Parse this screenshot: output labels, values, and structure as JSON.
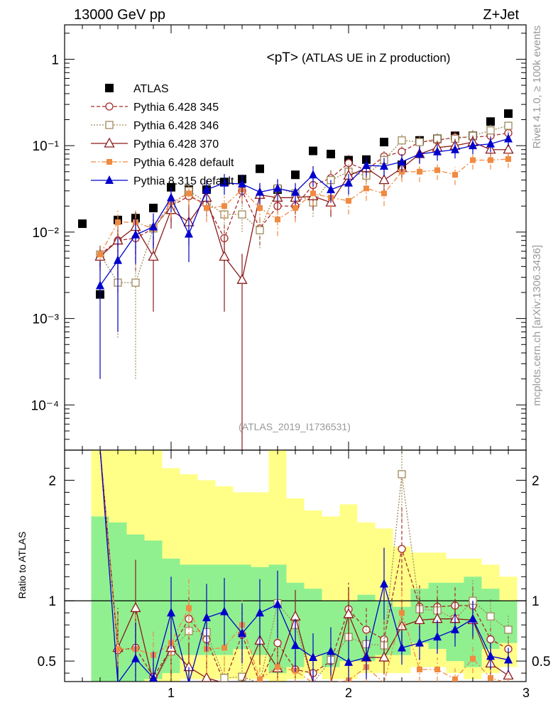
{
  "header": {
    "left": "13000 GeV pp",
    "right": "Z+Jet"
  },
  "side_text": {
    "rivet": "Rivet 4.1.0, ≥ 100k events",
    "mcplots": "mcplots.cern.ch [arXiv:1306.3436]"
  },
  "chart_data": {
    "type": "scatter",
    "title": "<pT> (ATLAS UE in Z production)",
    "title_main": "<pT>",
    "title_sub": " (ATLAS UE in Z production)",
    "analysis_label": "(ATLAS_2019_I1736531)",
    "xlabel": "",
    "ylabel": "",
    "ratio_ylabel": "Ratio to ATLAS",
    "xlim": [
      0.4,
      3.0
    ],
    "ylim": [
      3e-05,
      2.5
    ],
    "yscale": "log",
    "ratio_ylim": [
      0.33,
      2.25
    ],
    "x_ticks": [
      1,
      2,
      3
    ],
    "x_tick_labels": [
      "1",
      "2",
      "3"
    ],
    "y_ticks": [
      0.0001,
      0.001,
      0.01,
      0.1,
      1
    ],
    "y_tick_labels": [
      "10⁻⁴",
      "10⁻³",
      "10⁻²",
      "10⁻¹",
      "1"
    ],
    "ratio_ticks": [
      0.5,
      1,
      2
    ],
    "ratio_tick_labels": [
      "0.5",
      "1",
      "2"
    ],
    "x": [
      0.5,
      0.6,
      0.7,
      0.8,
      0.9,
      1.0,
      1.1,
      1.2,
      1.3,
      1.4,
      1.5,
      1.6,
      1.7,
      1.8,
      1.9,
      2.0,
      2.1,
      2.2,
      2.3,
      2.4,
      2.5,
      2.6,
      2.7,
      2.8,
      2.9
    ],
    "band_bins": [
      0.45,
      0.55,
      0.65,
      0.75,
      0.85,
      0.95,
      1.05,
      1.15,
      1.25,
      1.35,
      1.45,
      1.55,
      1.65,
      1.75,
      1.85,
      1.95,
      2.05,
      2.15,
      2.25,
      2.35,
      2.45,
      2.55,
      2.65,
      2.75,
      2.85,
      2.95
    ],
    "band_stat": [
      [
        0.0,
        0.0
      ],
      [
        0.0,
        1.7
      ],
      [
        0.0,
        1.65
      ],
      [
        0.0,
        1.55
      ],
      [
        0.35,
        1.5
      ],
      [
        0.4,
        1.35
      ],
      [
        0.55,
        1.3
      ],
      [
        0.55,
        1.3
      ],
      [
        0.55,
        1.3
      ],
      [
        0.6,
        1.3
      ],
      [
        0.55,
        1.28
      ],
      [
        0.4,
        1.3
      ],
      [
        0.45,
        1.15
      ],
      [
        0.55,
        1.1
      ],
      [
        0.45,
        1.0
      ],
      [
        0.5,
        1.0
      ],
      [
        0.5,
        1.05
      ],
      [
        0.55,
        1.0
      ],
      [
        0.55,
        0.95
      ],
      [
        0.65,
        1.1
      ],
      [
        0.6,
        1.15
      ],
      [
        0.5,
        1.15
      ],
      [
        0.45,
        1.2
      ],
      [
        0.6,
        1.1
      ],
      [
        0.65,
        1.0
      ],
      [
        0.6,
        1.1
      ]
    ],
    "band_total": [
      [
        0.0,
        0.0
      ],
      [
        0.0,
        2.25
      ],
      [
        0.0,
        2.25
      ],
      [
        0.0,
        2.25
      ],
      [
        0.0,
        2.25
      ],
      [
        0.0,
        2.1
      ],
      [
        0.35,
        2.05
      ],
      [
        0.35,
        2.0
      ],
      [
        0.35,
        1.95
      ],
      [
        0.35,
        1.9
      ],
      [
        0.35,
        1.9
      ],
      [
        0.33,
        2.25
      ],
      [
        0.35,
        1.85
      ],
      [
        0.4,
        1.75
      ],
      [
        0.35,
        1.7
      ],
      [
        0.35,
        1.8
      ],
      [
        0.4,
        1.65
      ],
      [
        0.4,
        1.6
      ],
      [
        0.4,
        1.45
      ],
      [
        0.45,
        1.4
      ],
      [
        0.45,
        1.4
      ],
      [
        0.4,
        1.35
      ],
      [
        0.35,
        1.35
      ],
      [
        0.4,
        1.3
      ],
      [
        0.45,
        1.2
      ],
      [
        0.45,
        1.15
      ]
    ],
    "series": [
      {
        "name": "ATLAS",
        "color": "#000000",
        "marker": "square-filled",
        "line": "none",
        "y": [
          0.0125,
          0.0019,
          0.0138,
          0.0145,
          0.019,
          0.033,
          0.031,
          0.031,
          0.038,
          0.041,
          0.054,
          0.031,
          0.046,
          0.087,
          0.08,
          0.068,
          0.069,
          0.11,
          0.06,
          0.115,
          0.12,
          0.13,
          0.13,
          0.19,
          0.235
        ],
        "ratio": []
      },
      {
        "name": "Pythia 6.428 345",
        "color": "#a52a2a",
        "marker": "circle-open",
        "line": "dashed",
        "y": [
          null,
          0.0055,
          0.008,
          0.0085,
          0.011,
          0.02,
          0.026,
          0.021,
          0.0085,
          0.03,
          0.011,
          0.02,
          0.02,
          0.035,
          0.042,
          0.063,
          0.052,
          0.075,
          0.085,
          0.11,
          0.115,
          0.125,
          0.125,
          0.13,
          0.14
        ],
        "yerr": [
          0,
          0.0015,
          0.006,
          0.005,
          0.004,
          0.007,
          0.007,
          0.006,
          0.004,
          0.009,
          0.004,
          0.006,
          0.006,
          0.01,
          0.012,
          0.015,
          0.014,
          0.017,
          0.019,
          0.02,
          0.021,
          0.022,
          0.022,
          0.022,
          0.023
        ],
        "ratio": [
          null,
          3.0,
          0.59,
          0.61,
          0.37,
          0.6,
          0.85,
          0.68,
          0.22,
          0.72,
          0.2,
          0.65,
          0.43,
          0.4,
          0.5,
          0.93,
          0.76,
          0.68,
          1.43,
          0.95,
          0.95,
          0.96,
          0.96,
          0.68,
          0.6
        ],
        "ratio_err": [
          0,
          0,
          0.35,
          0.35,
          0.2,
          0.22,
          0.22,
          0.2,
          0.1,
          0.22,
          0.1,
          0.2,
          0.15,
          0.12,
          0.15,
          0.22,
          0.18,
          0.16,
          0.35,
          0.18,
          0.17,
          0.16,
          0.16,
          0.12,
          0.1
        ]
      },
      {
        "name": "Pythia 6.428 346",
        "color": "#a08a5a",
        "marker": "square-open",
        "line": "dotted",
        "y": [
          null,
          0.0055,
          0.0026,
          0.0026,
          0.011,
          0.02,
          0.03,
          0.022,
          0.016,
          0.016,
          0.0105,
          0.032,
          0.028,
          0.022,
          0.04,
          0.05,
          0.045,
          0.068,
          0.115,
          0.11,
          0.12,
          0.12,
          0.13,
          0.15,
          0.17
        ],
        "yerr": [
          0,
          0.0015,
          0.002,
          0.0024,
          0.004,
          0.007,
          0.008,
          0.007,
          0.006,
          0.006,
          0.004,
          0.008,
          0.008,
          0.007,
          0.011,
          0.013,
          0.012,
          0.016,
          0.02,
          0.02,
          0.021,
          0.021,
          0.022,
          0.024,
          0.025
        ],
        "ratio": [
          null,
          3.0,
          0.19,
          0.19,
          0.27,
          0.58,
          0.75,
          0.74,
          0.36,
          0.37,
          0.21,
          0.98,
          0.8,
          0.22,
          0.51,
          0.7,
          0.64,
          0.63,
          2.05,
          0.93,
          0.92,
          0.85,
          1.0,
          0.87,
          0.76
        ],
        "ratio_err": [
          0,
          0,
          0.15,
          0.15,
          0.2,
          0.22,
          0.22,
          0.2,
          0.14,
          0.14,
          0.1,
          0.22,
          0.2,
          0.1,
          0.15,
          0.18,
          0.17,
          0.16,
          0.4,
          0.18,
          0.17,
          0.16,
          0.17,
          0.15,
          0.13
        ]
      },
      {
        "name": "Pythia 6.428 370",
        "color": "#8b1a1a",
        "marker": "triangle-open",
        "line": "solid",
        "y": [
          null,
          0.0052,
          0.008,
          0.0115,
          0.0052,
          0.018,
          0.013,
          0.025,
          0.0052,
          0.0028,
          0.027,
          0.025,
          0.025,
          0.026,
          0.022,
          0.045,
          0.055,
          0.04,
          0.055,
          0.08,
          0.095,
          0.1,
          0.11,
          0.09,
          0.09
        ],
        "yerr": [
          0,
          0.0016,
          0.005,
          0.006,
          0.004,
          0.007,
          0.006,
          0.008,
          0.004,
          0.0028,
          0.009,
          0.008,
          0.008,
          0.008,
          0.007,
          0.012,
          0.013,
          0.011,
          0.014,
          0.018,
          0.019,
          0.02,
          0.021,
          0.018,
          0.018
        ],
        "ratio": [
          null,
          3.0,
          0.61,
          0.94,
          0.27,
          0.61,
          0.45,
          0.36,
          0.2,
          0.09,
          0.67,
          0.44,
          0.87,
          0.3,
          0.26,
          0.89,
          0.53,
          0.53,
          0.79,
          0.84,
          0.85,
          0.85,
          0.84,
          0.48,
          0.38
        ],
        "ratio_err": [
          0,
          0,
          0.3,
          0.4,
          0.15,
          0.22,
          0.2,
          0.15,
          0.1,
          0.07,
          0.2,
          0.15,
          0.22,
          0.12,
          0.1,
          0.22,
          0.15,
          0.14,
          0.22,
          0.18,
          0.17,
          0.16,
          0.16,
          0.12,
          0.1
        ]
      },
      {
        "name": "Pythia 6.428 default",
        "color": "#f08a40",
        "marker": "square-filled-small",
        "line": "dashdot",
        "y": [
          null,
          0.0055,
          0.013,
          0.013,
          0.011,
          0.022,
          0.028,
          0.019,
          0.02,
          0.031,
          0.019,
          0.014,
          0.019,
          0.028,
          0.025,
          0.023,
          0.032,
          0.028,
          0.05,
          0.05,
          0.052,
          0.046,
          0.068,
          0.068,
          0.07
        ],
        "yerr": [
          0,
          0.0015,
          0.005,
          0.005,
          0.004,
          0.007,
          0.007,
          0.006,
          0.006,
          0.008,
          0.006,
          0.005,
          0.006,
          0.008,
          0.007,
          0.007,
          0.009,
          0.008,
          0.012,
          0.012,
          0.012,
          0.011,
          0.015,
          0.015,
          0.015
        ],
        "ratio": [
          null,
          3.0,
          0.6,
          0.6,
          0.55,
          0.65,
          0.94,
          0.6,
          0.61,
          0.8,
          0.35,
          0.45,
          0.42,
          0.32,
          0.31,
          0.34,
          0.45,
          0.25,
          0.9,
          0.43,
          0.43,
          0.35,
          0.52,
          0.36,
          0.3
        ],
        "ratio_err": [
          0,
          0,
          0.3,
          0.3,
          0.2,
          0.22,
          0.24,
          0.2,
          0.2,
          0.22,
          0.12,
          0.14,
          0.14,
          0.1,
          0.1,
          0.1,
          0.12,
          0.08,
          0.22,
          0.1,
          0.1,
          0.09,
          0.12,
          0.09,
          0.08
        ]
      },
      {
        "name": "Pythia 8.315 default",
        "color": "#0000cc",
        "marker": "triangle-filled",
        "line": "solid",
        "y": [
          null,
          0.0024,
          0.0047,
          0.0093,
          0.0115,
          0.025,
          0.0095,
          0.031,
          0.037,
          0.036,
          0.029,
          0.032,
          0.029,
          0.046,
          0.031,
          0.037,
          0.059,
          0.058,
          0.065,
          0.08,
          0.085,
          0.09,
          0.1,
          0.105,
          0.12
        ],
        "yerr": [
          0,
          0.0022,
          0.004,
          0.005,
          0.005,
          0.008,
          0.005,
          0.009,
          0.01,
          0.01,
          0.008,
          0.009,
          0.008,
          0.012,
          0.009,
          0.01,
          0.014,
          0.014,
          0.015,
          0.018,
          0.018,
          0.019,
          0.02,
          0.021,
          0.022
        ],
        "ratio": [
          null,
          3.0,
          0.25,
          0.52,
          0.36,
          0.9,
          0.3,
          0.86,
          0.91,
          0.73,
          0.9,
          0.97,
          0.63,
          0.53,
          0.58,
          0.49,
          0.53,
          1.14,
          0.61,
          0.65,
          0.7,
          0.76,
          0.85,
          0.54,
          0.51
        ],
        "ratio_err": [
          0,
          0,
          0.2,
          0.3,
          0.22,
          0.3,
          0.15,
          0.28,
          0.28,
          0.25,
          0.28,
          0.28,
          0.22,
          0.2,
          0.2,
          0.18,
          0.18,
          0.3,
          0.14,
          0.14,
          0.14,
          0.14,
          0.15,
          0.11,
          0.1
        ]
      }
    ]
  }
}
